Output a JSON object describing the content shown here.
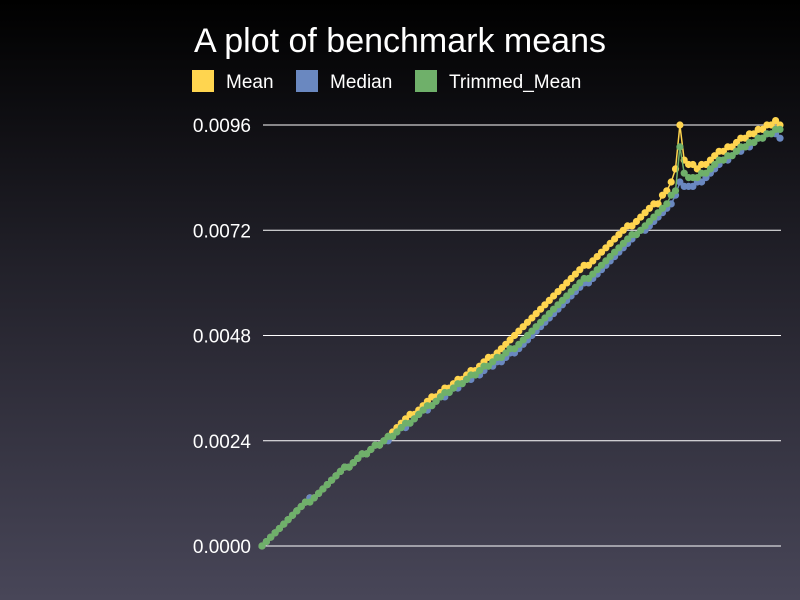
{
  "chart_data": {
    "type": "line",
    "title": "A plot of benchmark means",
    "xlabel": "",
    "ylabel": "",
    "ylim": [
      0,
      0.0096
    ],
    "yticks": [
      "0.0000",
      "0.0024",
      "0.0048",
      "0.0072",
      "0.0096"
    ],
    "xlim": [
      0,
      119
    ],
    "grid": true,
    "legend_position": "top",
    "series": [
      {
        "name": "Mean",
        "color": "#ffd54f",
        "values": [
          0.0,
          0.0001,
          0.0002,
          0.0003,
          0.0004,
          0.0005,
          0.0006,
          0.0007,
          0.0008,
          0.0009,
          0.001,
          0.0011,
          0.0011,
          0.0012,
          0.0013,
          0.0014,
          0.0015,
          0.0016,
          0.0017,
          0.0018,
          0.0018,
          0.0019,
          0.002,
          0.0021,
          0.0021,
          0.0022,
          0.0023,
          0.0023,
          0.0024,
          0.0025,
          0.0026,
          0.0027,
          0.0028,
          0.0029,
          0.003,
          0.003,
          0.0031,
          0.0032,
          0.0033,
          0.0034,
          0.0034,
          0.0035,
          0.0036,
          0.0036,
          0.0037,
          0.0038,
          0.0038,
          0.0039,
          0.004,
          0.004,
          0.0041,
          0.0042,
          0.0043,
          0.0043,
          0.0044,
          0.0045,
          0.0046,
          0.0047,
          0.0048,
          0.0049,
          0.005,
          0.0051,
          0.0052,
          0.0053,
          0.0054,
          0.0055,
          0.0056,
          0.0057,
          0.0058,
          0.0059,
          0.006,
          0.0061,
          0.0062,
          0.0063,
          0.0064,
          0.0064,
          0.0065,
          0.0066,
          0.0067,
          0.0068,
          0.0069,
          0.007,
          0.0071,
          0.0072,
          0.0073,
          0.0073,
          0.0074,
          0.0075,
          0.0076,
          0.0077,
          0.0078,
          0.0078,
          0.008,
          0.0081,
          0.0083,
          0.0086,
          0.0096,
          0.0088,
          0.0087,
          0.0087,
          0.0086,
          0.0087,
          0.0087,
          0.0088,
          0.0089,
          0.009,
          0.009,
          0.0091,
          0.0091,
          0.0092,
          0.0093,
          0.0093,
          0.0094,
          0.0094,
          0.0095,
          0.0095,
          0.0096,
          0.0096,
          0.0097,
          0.0096
        ]
      },
      {
        "name": "Median",
        "color": "#6a88c0",
        "values": [
          0.0,
          0.0001,
          0.0002,
          0.0003,
          0.0004,
          0.0005,
          0.0006,
          0.0007,
          0.0008,
          0.0009,
          0.001,
          0.0011,
          0.0011,
          0.0012,
          0.0013,
          0.0014,
          0.0015,
          0.0016,
          0.0017,
          0.0018,
          0.0018,
          0.0019,
          0.002,
          0.0021,
          0.0021,
          0.0022,
          0.0023,
          0.0023,
          0.0024,
          0.0024,
          0.0025,
          0.0026,
          0.0027,
          0.0027,
          0.0028,
          0.0029,
          0.003,
          0.0031,
          0.0031,
          0.0032,
          0.0033,
          0.0034,
          0.0034,
          0.0035,
          0.0036,
          0.0036,
          0.0037,
          0.0038,
          0.0038,
          0.0039,
          0.0039,
          0.004,
          0.0041,
          0.0041,
          0.0042,
          0.0042,
          0.0043,
          0.0044,
          0.0044,
          0.0045,
          0.0046,
          0.0047,
          0.0048,
          0.0049,
          0.005,
          0.0051,
          0.0052,
          0.0053,
          0.0054,
          0.0055,
          0.0056,
          0.0057,
          0.0058,
          0.0059,
          0.006,
          0.006,
          0.0061,
          0.0062,
          0.0063,
          0.0064,
          0.0065,
          0.0066,
          0.0067,
          0.0068,
          0.0069,
          0.007,
          0.0071,
          0.0072,
          0.0072,
          0.0073,
          0.0074,
          0.0075,
          0.0076,
          0.0077,
          0.0078,
          0.008,
          0.0083,
          0.0082,
          0.0082,
          0.0082,
          0.0083,
          0.0083,
          0.0084,
          0.0085,
          0.0086,
          0.0087,
          0.0088,
          0.0088,
          0.0089,
          0.009,
          0.009,
          0.0091,
          0.0091,
          0.0092,
          0.0093,
          0.0093,
          0.0094,
          0.0094,
          0.0094,
          0.0093
        ]
      },
      {
        "name": "Trimmed_Mean",
        "color": "#6fb06a",
        "values": [
          0.0,
          0.0001,
          0.0002,
          0.0003,
          0.0004,
          0.0005,
          0.0006,
          0.0007,
          0.0008,
          0.0009,
          0.001,
          0.001,
          0.0011,
          0.0012,
          0.0013,
          0.0014,
          0.0015,
          0.0016,
          0.0017,
          0.0018,
          0.0018,
          0.0019,
          0.002,
          0.0021,
          0.0021,
          0.0022,
          0.0023,
          0.0023,
          0.0024,
          0.0025,
          0.0025,
          0.0026,
          0.0027,
          0.0028,
          0.0028,
          0.0029,
          0.003,
          0.0031,
          0.0032,
          0.0032,
          0.0033,
          0.0034,
          0.0035,
          0.0035,
          0.0036,
          0.0037,
          0.0037,
          0.0038,
          0.0039,
          0.0039,
          0.004,
          0.0041,
          0.0041,
          0.0042,
          0.0043,
          0.0043,
          0.0044,
          0.0045,
          0.0045,
          0.0046,
          0.0047,
          0.0048,
          0.0049,
          0.005,
          0.0051,
          0.0052,
          0.0053,
          0.0054,
          0.0055,
          0.0056,
          0.0057,
          0.0058,
          0.0059,
          0.006,
          0.0061,
          0.0061,
          0.0062,
          0.0063,
          0.0064,
          0.0065,
          0.0066,
          0.0067,
          0.0068,
          0.0069,
          0.007,
          0.0071,
          0.0071,
          0.0072,
          0.0073,
          0.0074,
          0.0075,
          0.0076,
          0.0077,
          0.0078,
          0.008,
          0.0081,
          0.0091,
          0.0085,
          0.0084,
          0.0084,
          0.0084,
          0.0085,
          0.0085,
          0.0086,
          0.0087,
          0.0088,
          0.0088,
          0.0089,
          0.0089,
          0.009,
          0.0091,
          0.0091,
          0.0092,
          0.0092,
          0.0093,
          0.0093,
          0.0094,
          0.0094,
          0.0095,
          0.0095
        ]
      }
    ]
  }
}
